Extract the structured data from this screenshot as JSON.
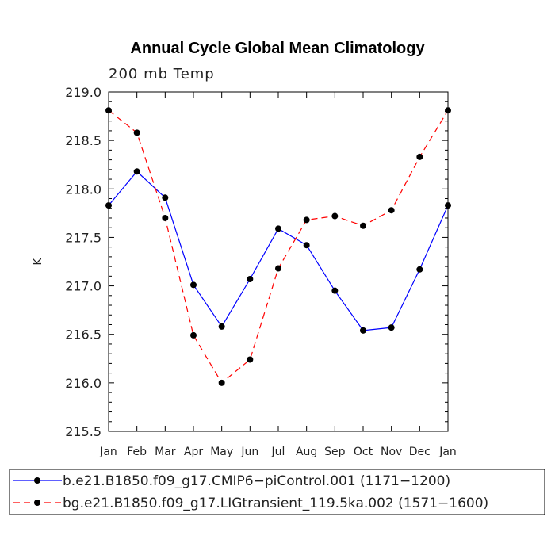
{
  "chart_data": {
    "type": "line",
    "title": "Annual Cycle Global Mean Climatology",
    "subtitle": "200 mb Temp",
    "xlabel": "",
    "ylabel": "K",
    "categories": [
      "Jan",
      "Feb",
      "Mar",
      "Apr",
      "May",
      "Jun",
      "Jul",
      "Aug",
      "Sep",
      "Oct",
      "Nov",
      "Dec",
      "Jan"
    ],
    "ylim": [
      215.5,
      219.0
    ],
    "yticks": [
      215.5,
      216.0,
      216.5,
      217.0,
      217.5,
      218.0,
      218.5,
      219.0
    ],
    "ytick_labels": [
      "215.5",
      "216.0",
      "216.5",
      "217.0",
      "217.5",
      "218.0",
      "218.5",
      "219.0"
    ],
    "grid": false,
    "legend_position": "bottom",
    "series": [
      {
        "name": "b.e21.B1850.f09_g17.CMIP6−piControl.001 (1171−1200)",
        "color": "#0000ff",
        "dash": "solid",
        "values": [
          217.83,
          218.18,
          217.91,
          217.01,
          216.58,
          217.07,
          217.59,
          217.42,
          216.95,
          216.54,
          216.57,
          217.17,
          217.83
        ]
      },
      {
        "name": "bg.e21.B1850.f09_g17.LIGtransient_119.5ka.002 (1571−1600)",
        "color": "#ff0000",
        "dash": "dashed",
        "values": [
          218.81,
          218.58,
          217.7,
          216.49,
          216.0,
          216.24,
          217.18,
          217.68,
          217.72,
          217.62,
          217.78,
          218.33,
          218.81
        ]
      }
    ]
  }
}
